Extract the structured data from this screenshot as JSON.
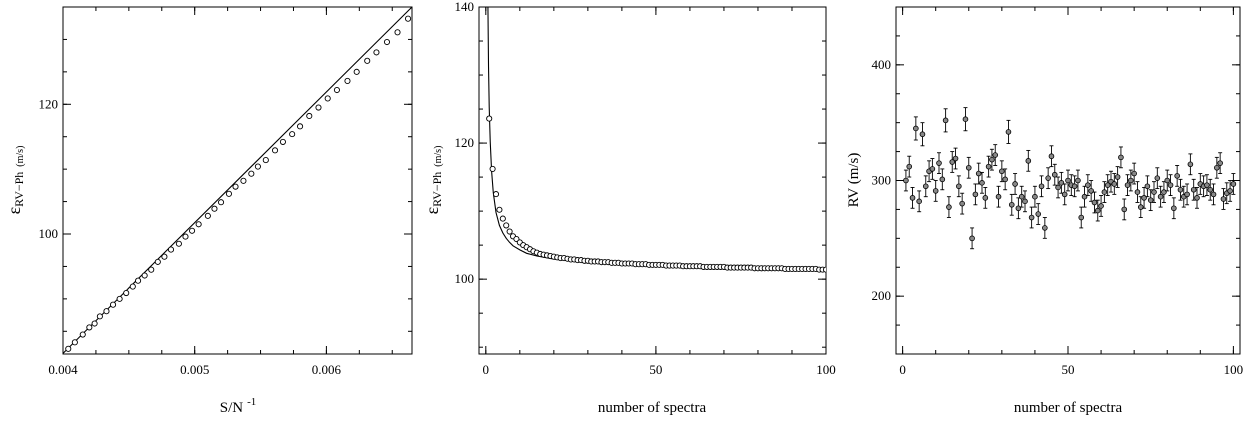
{
  "chart_data": [
    {
      "type": "scatter",
      "xlabel": "S/N",
      "xlabel_sup": "-1",
      "ylabel_main": "ε",
      "ylabel_sub": "RV−Ph",
      "ylabel_unit": "(m/s)",
      "xlim": [
        0.004,
        0.00665
      ],
      "ylim": [
        81.5,
        135
      ],
      "xticks": [
        0.004,
        0.005,
        0.006
      ],
      "xtick_labels": [
        "0.004",
        "0.005",
        "0.006"
      ],
      "yticks": [
        100,
        120
      ],
      "ytick_labels": [
        "100",
        "120"
      ],
      "grid": false,
      "series": [
        {
          "kind": "line",
          "x": [
            0.004,
            0.00665
          ],
          "y": [
            81.6,
            135.0
          ]
        },
        {
          "kind": "points",
          "x": [
            0.00404,
            0.00409,
            0.00415,
            0.0042,
            0.00424,
            0.00428,
            0.00433,
            0.00438,
            0.00443,
            0.00448,
            0.00453,
            0.00457,
            0.00462,
            0.00467,
            0.00472,
            0.00477,
            0.00482,
            0.00488,
            0.00493,
            0.00498,
            0.00503,
            0.0051,
            0.00515,
            0.0052,
            0.00526,
            0.00531,
            0.00537,
            0.00543,
            0.00548,
            0.00554,
            0.00561,
            0.00567,
            0.00574,
            0.0058,
            0.00587,
            0.00594,
            0.00601,
            0.00608,
            0.00616,
            0.00623,
            0.00631,
            0.00638,
            0.00646,
            0.00654,
            0.00662
          ],
          "y": [
            82.3,
            83.3,
            84.5,
            85.6,
            86.2,
            87.3,
            88.1,
            89.1,
            90.0,
            90.9,
            91.9,
            92.8,
            93.6,
            94.5,
            95.7,
            96.5,
            97.6,
            98.5,
            99.6,
            100.5,
            101.5,
            102.8,
            103.9,
            104.9,
            106.2,
            107.3,
            108.2,
            109.3,
            110.4,
            111.4,
            112.9,
            114.2,
            115.4,
            116.6,
            118.2,
            119.5,
            120.9,
            122.2,
            123.6,
            125.0,
            126.7,
            128.0,
            129.6,
            131.1,
            133.2
          ]
        }
      ]
    },
    {
      "type": "scatter",
      "xlabel": "number of spectra",
      "ylabel_main": "ε",
      "ylabel_sub": "RV−Ph",
      "ylabel_unit": "(m/s)",
      "xlim": [
        -2,
        100
      ],
      "ylim": [
        89,
        140
      ],
      "xticks": [
        0,
        50,
        100
      ],
      "xtick_labels": [
        "0",
        "50",
        "100"
      ],
      "yticks": [
        100,
        120,
        140
      ],
      "ytick_labels": [
        "100",
        "120",
        "140"
      ],
      "grid": false,
      "series": [
        {
          "kind": "line",
          "x": [
            0.6,
            0.8,
            1,
            1.3,
            1.7,
            2.2,
            3,
            4,
            5,
            6,
            7,
            8,
            10,
            12,
            15,
            20,
            25,
            30,
            40,
            50,
            60,
            70,
            80,
            90,
            100
          ],
          "y": [
            141.3,
            131.2,
            125.3,
            120.2,
            115.9,
            112.7,
            109.8,
            107.9,
            106.8,
            106.0,
            105.4,
            104.9,
            104.3,
            103.8,
            103.4,
            102.95,
            102.7,
            102.5,
            102.2,
            102.05,
            101.9,
            101.8,
            101.75,
            101.7,
            101.6
          ]
        },
        {
          "kind": "points",
          "x": [
            1,
            2,
            3,
            4,
            5,
            6,
            7,
            8,
            9,
            10,
            11,
            12,
            13,
            14,
            15,
            16,
            17,
            18,
            19,
            20,
            21,
            22,
            23,
            24,
            25,
            26,
            27,
            28,
            29,
            30,
            31,
            32,
            33,
            34,
            35,
            36,
            37,
            38,
            39,
            40,
            41,
            42,
            43,
            44,
            45,
            46,
            47,
            48,
            49,
            50,
            51,
            52,
            53,
            54,
            55,
            56,
            57,
            58,
            59,
            60,
            61,
            62,
            63,
            64,
            65,
            66,
            67,
            68,
            69,
            70,
            71,
            72,
            73,
            74,
            75,
            76,
            77,
            78,
            79,
            80,
            81,
            82,
            83,
            84,
            85,
            86,
            87,
            88,
            89,
            90,
            91,
            92,
            93,
            94,
            95,
            96,
            97,
            98,
            99,
            100
          ],
          "y": [
            123.6,
            116.2,
            112.5,
            110.2,
            108.9,
            107.9,
            107.0,
            106.3,
            105.9,
            105.4,
            105.0,
            104.7,
            104.4,
            104.1,
            103.9,
            103.7,
            103.6,
            103.5,
            103.4,
            103.3,
            103.2,
            103.1,
            103.1,
            103.0,
            102.9,
            102.9,
            102.8,
            102.8,
            102.7,
            102.7,
            102.6,
            102.6,
            102.6,
            102.5,
            102.5,
            102.5,
            102.4,
            102.4,
            102.4,
            102.3,
            102.3,
            102.3,
            102.3,
            102.2,
            102.2,
            102.2,
            102.2,
            102.1,
            102.1,
            102.1,
            102.1,
            102.1,
            102.0,
            102.0,
            102.0,
            102.0,
            102.0,
            101.9,
            101.9,
            101.9,
            101.9,
            101.9,
            101.9,
            101.8,
            101.8,
            101.8,
            101.8,
            101.8,
            101.8,
            101.8,
            101.7,
            101.7,
            101.7,
            101.7,
            101.7,
            101.7,
            101.7,
            101.7,
            101.6,
            101.6,
            101.6,
            101.6,
            101.6,
            101.6,
            101.6,
            101.6,
            101.6,
            101.5,
            101.5,
            101.5,
            101.5,
            101.5,
            101.5,
            101.5,
            101.5,
            101.5,
            101.5,
            101.4,
            101.4,
            101.4
          ]
        }
      ]
    },
    {
      "type": "scatter",
      "xlabel": "number of spectra",
      "ylabel_main": "RV (m/s)",
      "xlim": [
        -2,
        102
      ],
      "ylim": [
        150,
        450
      ],
      "xticks": [
        0,
        50,
        100
      ],
      "xtick_labels": [
        "0",
        "50",
        "100"
      ],
      "yticks": [
        200,
        300,
        400
      ],
      "ytick_labels": [
        "200",
        "300",
        "400"
      ],
      "grid": false,
      "error_bars": true,
      "series": [
        {
          "kind": "points_with_errors",
          "x": [
            1,
            2,
            3,
            4,
            5,
            6,
            7,
            8,
            9,
            10,
            11,
            12,
            13,
            14,
            15,
            16,
            17,
            18,
            19,
            20,
            21,
            22,
            23,
            24,
            25,
            26,
            27,
            28,
            29,
            30,
            31,
            32,
            33,
            34,
            35,
            36,
            37,
            38,
            39,
            40,
            41,
            42,
            43,
            44,
            45,
            46,
            47,
            48,
            49,
            50,
            51,
            52,
            53,
            54,
            55,
            56,
            57,
            58,
            59,
            60,
            61,
            62,
            63,
            64,
            65,
            66,
            67,
            68,
            69,
            70,
            71,
            72,
            73,
            74,
            75,
            76,
            77,
            78,
            79,
            80,
            81,
            82,
            83,
            84,
            85,
            86,
            87,
            88,
            89,
            90,
            91,
            92,
            93,
            94,
            95,
            96,
            97,
            98,
            99,
            100
          ],
          "y": [
            300,
            312,
            285,
            345,
            282,
            340,
            295,
            308,
            310,
            291,
            315,
            301,
            352,
            277,
            316,
            319,
            295,
            280,
            353,
            311,
            250,
            288,
            306,
            298,
            285,
            312,
            318,
            322,
            286,
            308,
            301,
            342,
            279,
            297,
            276,
            286,
            282,
            317,
            268,
            286,
            271,
            295,
            259,
            302,
            321,
            305,
            294,
            298,
            288,
            300,
            296,
            295,
            300,
            268,
            286,
            296,
            291,
            281,
            274,
            278,
            290,
            296,
            299,
            297,
            303,
            320,
            275,
            296,
            300,
            306,
            290,
            277,
            285,
            295,
            283,
            290,
            302,
            286,
            290,
            300,
            296,
            276,
            304,
            292,
            286,
            288,
            314,
            292,
            285,
            297,
            295,
            296,
            292,
            288,
            311,
            315,
            284,
            289,
            291,
            297
          ],
          "yerr": [
            9,
            9,
            9,
            10,
            9,
            10,
            9,
            9,
            9,
            9,
            9,
            9,
            10,
            9,
            9,
            9,
            9,
            9,
            10,
            9,
            9,
            9,
            9,
            9,
            9,
            9,
            9,
            9,
            9,
            9,
            9,
            10,
            9,
            9,
            9,
            9,
            9,
            9,
            9,
            9,
            9,
            9,
            9,
            9,
            9,
            9,
            9,
            9,
            9,
            9,
            9,
            9,
            9,
            9,
            9,
            9,
            9,
            9,
            9,
            9,
            9,
            9,
            9,
            9,
            9,
            9,
            9,
            9,
            9,
            9,
            9,
            9,
            9,
            9,
            9,
            9,
            9,
            9,
            9,
            9,
            9,
            9,
            9,
            9,
            9,
            9,
            9,
            9,
            9,
            9,
            9,
            9,
            9,
            9,
            9,
            9,
            9,
            9,
            9,
            9
          ]
        }
      ]
    }
  ]
}
